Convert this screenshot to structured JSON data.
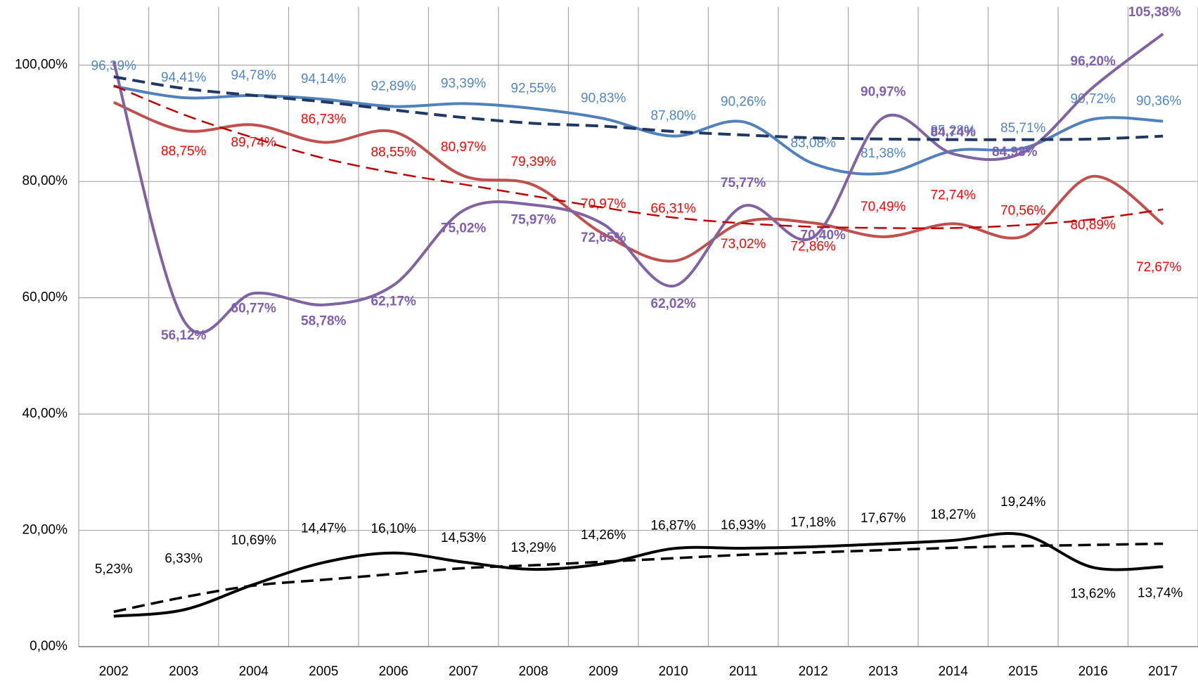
{
  "chart_data": {
    "type": "line",
    "categories": [
      "2002",
      "2003",
      "2004",
      "2005",
      "2006",
      "2007",
      "2008",
      "2009",
      "2010",
      "2011",
      "2012",
      "2013",
      "2014",
      "2015",
      "2016",
      "2017"
    ],
    "ylim": [
      0,
      110
    ],
    "yticks": [
      {
        "value": 0,
        "label": "0,00%"
      },
      {
        "value": 20,
        "label": "20,00%"
      },
      {
        "value": 40,
        "label": "40,00%"
      },
      {
        "value": 60,
        "label": "60,00%"
      },
      {
        "value": 80,
        "label": "80,00%"
      },
      {
        "value": 100,
        "label": "100,00%"
      }
    ],
    "grid": true,
    "series": [
      {
        "color": "#4f81bd",
        "label_color": "#4f86c6",
        "values": [
          96.39,
          94.41,
          94.78,
          94.14,
          92.89,
          93.39,
          92.55,
          90.83,
          87.8,
          90.26,
          83.08,
          81.38,
          85.28,
          85.71,
          90.72,
          90.36
        ],
        "value_labels": [
          "96,39%",
          "94,41%",
          "94,78%",
          "94,14%",
          "92,89%",
          "93,39%",
          "92,55%",
          "90,83%",
          "87,80%",
          "90,26%",
          "83,08%",
          "81,38%",
          "85,28%",
          "85,71%",
          "90,72%",
          "90,36%"
        ]
      },
      {
        "color": "#c0504d",
        "label_color": "#ff0000",
        "values": [
          93.6,
          88.75,
          89.74,
          86.73,
          88.55,
          80.97,
          79.39,
          70.97,
          66.31,
          73.02,
          72.86,
          70.49,
          72.74,
          70.56,
          80.89,
          72.67
        ],
        "value_labels": [
          null,
          "88,75%",
          "89,74%",
          "86,73%",
          "88,55%",
          "80,97%",
          "79,39%",
          "70,97%",
          "66,31%",
          "73,02%",
          "72,86%",
          "70,49%",
          "72,74%",
          "70,56%",
          "80,89%",
          "72,67%"
        ]
      },
      {
        "color": "#8064a2",
        "label_color": "#7f5fb0",
        "bold": true,
        "values": [
          100.6,
          56.12,
          60.77,
          58.78,
          62.17,
          75.02,
          75.97,
          72.65,
          62.02,
          75.77,
          70.4,
          90.97,
          84.74,
          84.98,
          96.2,
          105.38
        ],
        "value_labels": [
          null,
          "56,12%",
          "60,77%",
          "58,78%",
          "62,17%",
          "75,02%",
          "75,97%",
          "72,65%",
          "62,02%",
          "75,77%",
          "70,40%",
          "90,97%",
          "84,74%",
          "84,98%",
          "96,20%",
          "105,38%"
        ]
      },
      {
        "color": "#000000",
        "label_color": "#000000",
        "values": [
          5.23,
          6.33,
          10.69,
          14.47,
          16.1,
          14.53,
          13.29,
          14.26,
          16.87,
          16.93,
          17.18,
          17.67,
          18.27,
          19.24,
          13.62,
          13.74
        ],
        "value_labels": [
          "5,23%",
          "6,33%",
          "10,69%",
          "14,47%",
          "16,10%",
          "14,53%",
          "13,29%",
          "14,26%",
          "16,87%",
          "16,93%",
          "17,18%",
          "17,67%",
          "18,27%",
          "19,24%",
          "13,62%",
          "13,74%"
        ]
      },
      {
        "color": "#1f3864",
        "dashed": true,
        "width": 4,
        "values": [
          98,
          96,
          94.8,
          93.7,
          92.3,
          91,
          90,
          89.5,
          88.6,
          88,
          87.5,
          87.3,
          87.2,
          87.2,
          87.3,
          87.8
        ]
      },
      {
        "color": "#c00000",
        "dashed": true,
        "width": 2.5,
        "values": [
          96.5,
          91.5,
          87.5,
          84,
          81.5,
          79.5,
          77.5,
          75.5,
          73.8,
          72.8,
          72.2,
          72,
          72,
          72.5,
          73.5,
          75.2
        ]
      },
      {
        "color": "#000000",
        "dashed": true,
        "width": 3.5,
        "values": [
          6,
          8.5,
          10.5,
          11.5,
          12.5,
          13.5,
          14,
          14.6,
          15.2,
          15.8,
          16.2,
          16.6,
          17,
          17.3,
          17.5,
          17.7
        ]
      }
    ]
  }
}
